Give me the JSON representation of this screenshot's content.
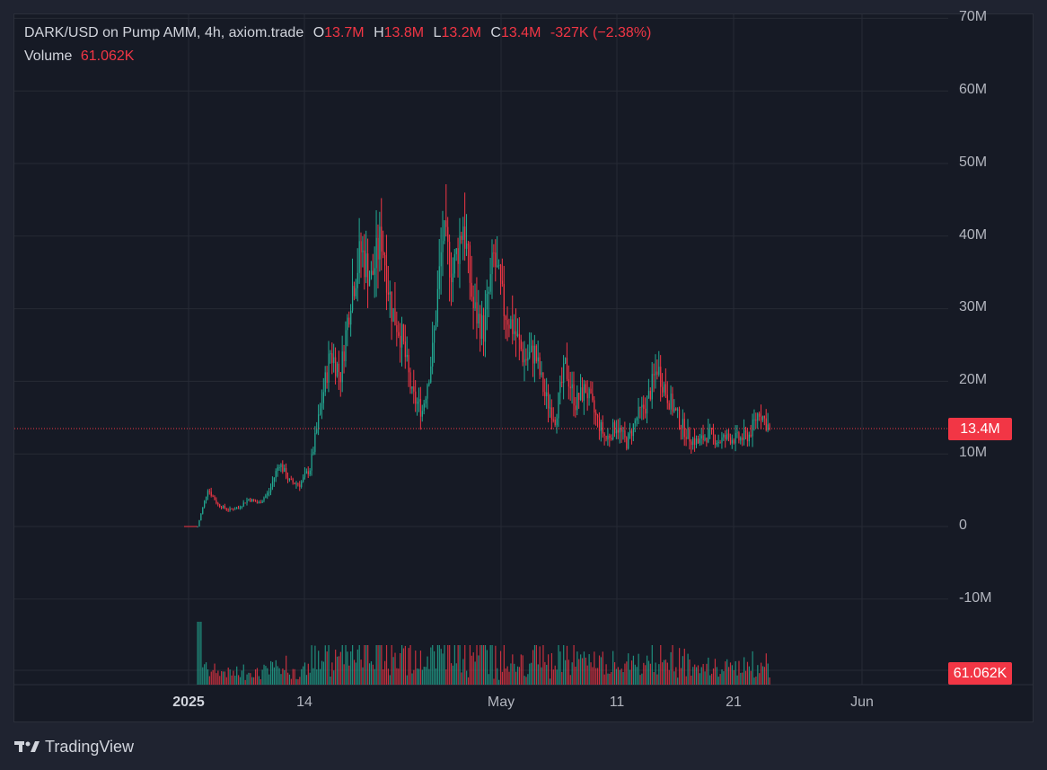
{
  "header": {
    "symbol": "DARK/USD on Pump AMM, 4h, axiom.trade",
    "o_label": "O",
    "o_value": "13.7M",
    "h_label": "H",
    "h_value": "13.8M",
    "l_label": "L",
    "l_value": "13.2M",
    "c_label": "C",
    "c_value": "13.4M",
    "change": "-327K (−2.38%)",
    "volume_label": "Volume",
    "volume_value": "61.062K"
  },
  "price_tag": "13.4M",
  "volume_tag": "61.062K",
  "brand": {
    "name": "TradingView",
    "icon": "tradingview-logo-icon"
  },
  "colors": {
    "background": "#161a25",
    "page": "#1f2330",
    "up": "#22ab94",
    "down": "#f23645",
    "grid": "#262a35",
    "text": "#b2b5be"
  },
  "chart_data": {
    "type": "candlestick",
    "interval": "4h",
    "y_ticks": [
      "70M",
      "60M",
      "50M",
      "40M",
      "30M",
      "20M",
      "10M",
      "0",
      "-10M"
    ],
    "x_ticks": [
      "2025",
      "14",
      "May",
      "11",
      "21",
      "Jun"
    ],
    "ylim": [
      -20000000,
      70000000
    ],
    "last_price": 13400000,
    "last_volume": 61062,
    "series": [
      {
        "name": "price",
        "points": [
          {
            "x": "Apr 2",
            "close": 0
          },
          {
            "x": "Apr 3",
            "close": 5200000
          },
          {
            "x": "Apr 4",
            "close": 3000000
          },
          {
            "x": "Apr 5",
            "close": 2300000
          },
          {
            "x": "Apr 6",
            "close": 2600000
          },
          {
            "x": "Apr 7",
            "close": 3800000
          },
          {
            "x": "Apr 8",
            "close": 3200000
          },
          {
            "x": "Apr 9",
            "close": 4800000
          },
          {
            "x": "Apr 10",
            "close": 8800000
          },
          {
            "x": "Apr 11",
            "close": 6200000
          },
          {
            "x": "Apr 12",
            "close": 5800000
          },
          {
            "x": "Apr 13",
            "close": 8000000
          },
          {
            "x": "Apr 14",
            "close": 16000000
          },
          {
            "x": "Apr 15",
            "close": 24000000
          },
          {
            "x": "Apr 16",
            "close": 21000000
          },
          {
            "x": "Apr 17",
            "close": 32000000
          },
          {
            "x": "Apr 18",
            "close": 38000000
          },
          {
            "x": "Apr 19",
            "close": 34000000
          },
          {
            "x": "Apr 20",
            "close": 40000000
          },
          {
            "x": "Apr 21",
            "close": 30000000
          },
          {
            "x": "Apr 22",
            "close": 26000000
          },
          {
            "x": "Apr 23",
            "close": 18000000
          },
          {
            "x": "Apr 24",
            "close": 16000000
          },
          {
            "x": "Apr 25",
            "close": 24000000
          },
          {
            "x": "Apr 26",
            "close": 40000000
          },
          {
            "x": "Apr 27",
            "close": 35000000
          },
          {
            "x": "Apr 28",
            "close": 42000000
          },
          {
            "x": "Apr 29",
            "close": 30000000
          },
          {
            "x": "Apr 30",
            "close": 27000000
          },
          {
            "x": "May 1",
            "close": 37000000
          },
          {
            "x": "May 2",
            "close": 30000000
          },
          {
            "x": "May 3",
            "close": 27000000
          },
          {
            "x": "May 4",
            "close": 23000000
          },
          {
            "x": "May 5",
            "close": 24000000
          },
          {
            "x": "May 6",
            "close": 18000000
          },
          {
            "x": "May 7",
            "close": 15000000
          },
          {
            "x": "May 8",
            "close": 22000000
          },
          {
            "x": "May 9",
            "close": 17000000
          },
          {
            "x": "May 10",
            "close": 19000000
          },
          {
            "x": "May 11",
            "close": 15000000
          },
          {
            "x": "May 12",
            "close": 12000000
          },
          {
            "x": "May 13",
            "close": 14000000
          },
          {
            "x": "May 14",
            "close": 11500000
          },
          {
            "x": "May 15",
            "close": 15000000
          },
          {
            "x": "May 16",
            "close": 17000000
          },
          {
            "x": "May 17",
            "close": 22000000
          },
          {
            "x": "May 18",
            "close": 18000000
          },
          {
            "x": "May 19",
            "close": 15000000
          },
          {
            "x": "May 20",
            "close": 12500000
          },
          {
            "x": "May 21",
            "close": 11500000
          },
          {
            "x": "May 22",
            "close": 12800000
          },
          {
            "x": "May 23",
            "close": 11800000
          },
          {
            "x": "May 24",
            "close": 12300000
          },
          {
            "x": "May 25",
            "close": 12000000
          },
          {
            "x": "May 26",
            "close": 12600000
          },
          {
            "x": "May 27",
            "close": 16000000
          },
          {
            "x": "May 28",
            "close": 13400000
          }
        ]
      }
    ]
  }
}
